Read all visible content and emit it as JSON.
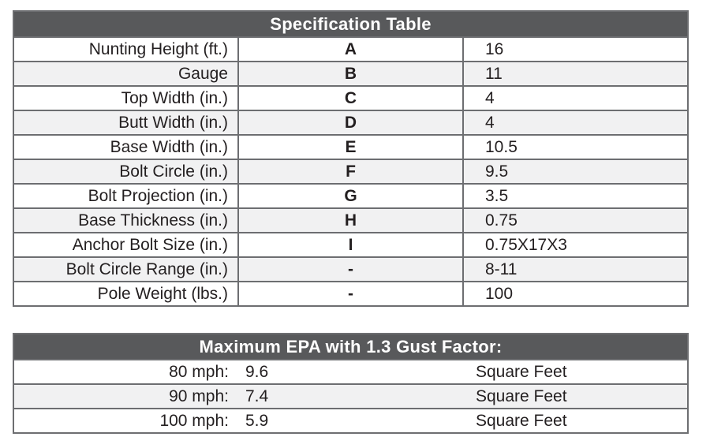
{
  "colors": {
    "header_bg": "#58595b",
    "header_text": "#ffffff",
    "border": "#6d6e71",
    "row_alt_bg": "#f1f1f2",
    "row_bg": "#ffffff",
    "text": "#231f20"
  },
  "spec": {
    "title": "Specification Table",
    "rows": [
      {
        "label": "Nunting Height (ft.)",
        "key": "A",
        "value": "16"
      },
      {
        "label": "Gauge",
        "key": "B",
        "value": "11"
      },
      {
        "label": "Top Width (in.)",
        "key": "C",
        "value": "4"
      },
      {
        "label": "Butt Width (in.)",
        "key": "D",
        "value": "4"
      },
      {
        "label": "Base Width (in.)",
        "key": "E",
        "value": "10.5"
      },
      {
        "label": "Bolt Circle (in.)",
        "key": "F",
        "value": "9.5"
      },
      {
        "label": "Bolt Projection (in.)",
        "key": "G",
        "value": "3.5"
      },
      {
        "label": "Base Thickness (in.)",
        "key": "H",
        "value": "0.75"
      },
      {
        "label": "Anchor Bolt Size (in.)",
        "key": "I",
        "value": "0.75X17X3"
      },
      {
        "label": "Bolt Circle Range (in.)",
        "key": "-",
        "value": "8-11"
      },
      {
        "label": "Pole Weight (lbs.)",
        "key": "-",
        "value": "100"
      }
    ]
  },
  "epa": {
    "title": "Maximum EPA with 1.3 Gust Factor:",
    "rows": [
      {
        "speed": "80 mph:",
        "value": "9.6",
        "unit": "Square Feet"
      },
      {
        "speed": "90 mph:",
        "value": "7.4",
        "unit": "Square Feet"
      },
      {
        "speed": "100 mph:",
        "value": "5.9",
        "unit": "Square Feet"
      }
    ]
  }
}
